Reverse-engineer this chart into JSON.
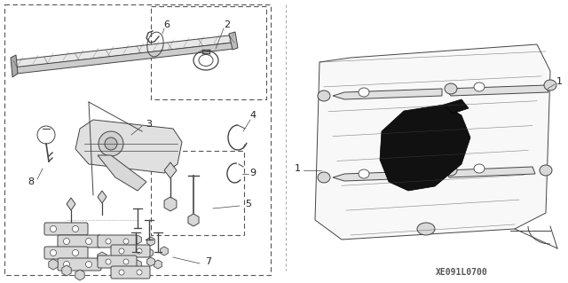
{
  "background_color": "#ffffff",
  "diagram_code": "XE091L0700",
  "line_color": "#444444",
  "label_color": "#222222",
  "font_size_label": 8,
  "font_size_code": 7,
  "figsize": [
    6.4,
    3.19
  ],
  "dpi": 100
}
